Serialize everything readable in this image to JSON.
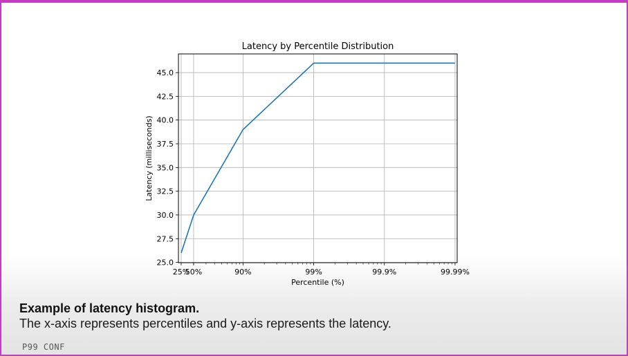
{
  "chart_data": {
    "type": "line",
    "title": "Latency by Percentile Distribution",
    "xlabel": "Percentile (%)",
    "ylabel": "Latency (milliseconds)",
    "x_scale": "log-inverse-percentile",
    "categories": [
      "25%",
      "50%",
      "90%",
      "99%",
      "99.9%",
      "99.99%"
    ],
    "x": [
      25,
      50,
      90,
      99,
      99.9,
      99.99
    ],
    "series": [
      {
        "values": [
          26.0,
          30.0,
          39.0,
          46.0,
          46.0,
          46.0
        ],
        "color": "#1f77b4"
      }
    ],
    "ylim": [
      25.0,
      46.5
    ],
    "yticks": [
      "25.0",
      "27.5",
      "30.0",
      "32.5",
      "35.0",
      "37.5",
      "40.0",
      "42.5",
      "45.0"
    ],
    "grid": true
  },
  "caption": {
    "title": "Example of latency histogram.",
    "body": "The x-axis represents percentiles and y-axis represents the latency."
  },
  "logo": "P99 CONF",
  "colors": {
    "frame": "#c13fbf",
    "line": "#1f77b4"
  }
}
